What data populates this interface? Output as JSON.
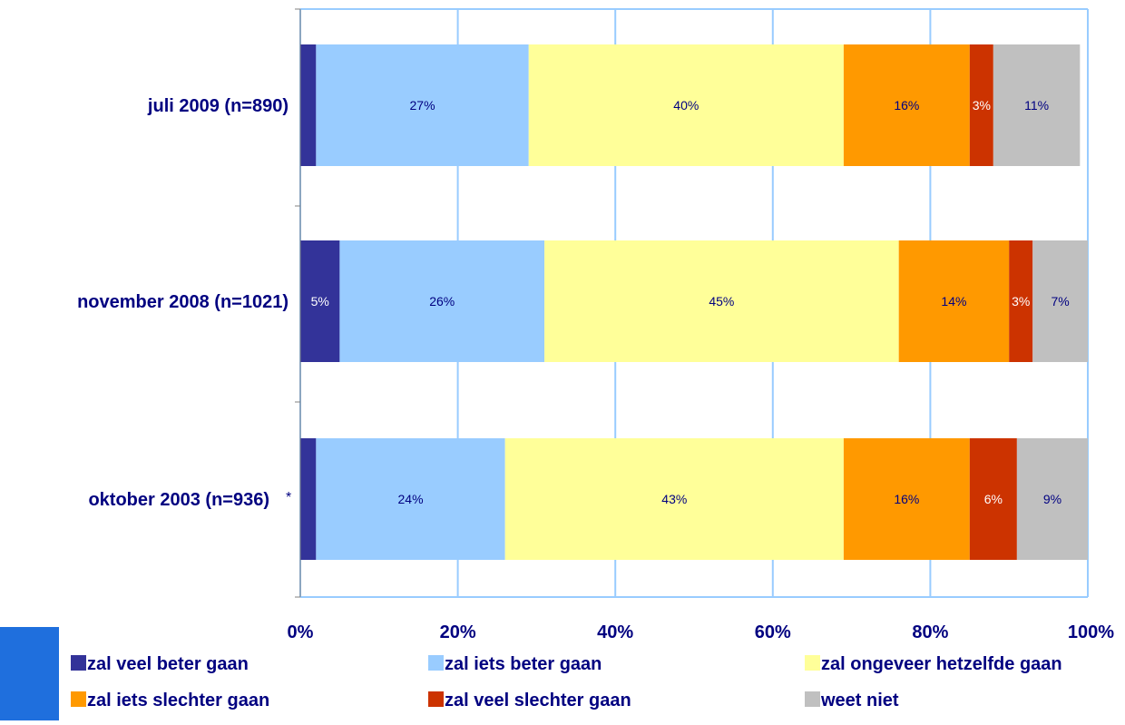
{
  "chart_data": {
    "type": "bar",
    "orientation": "horizontal",
    "stacked": true,
    "percent_stacked": true,
    "categories": [
      "juli 2009 (n=890)",
      "november 2008 (n=1021)",
      "oktober 2003 (n=936)"
    ],
    "category_notes": [
      "",
      "",
      "*"
    ],
    "series": [
      {
        "name": "zal veel beter gaan",
        "color": "#333399",
        "values": [
          2,
          5,
          2
        ],
        "labels": [
          "",
          "5%",
          ""
        ],
        "label_color": "#ffffff"
      },
      {
        "name": "zal iets beter gaan",
        "color": "#99ccff",
        "values": [
          27,
          26,
          24
        ],
        "labels": [
          "27%",
          "26%",
          "24%"
        ],
        "label_color": "#000080"
      },
      {
        "name": "zal ongeveer hetzelfde gaan",
        "color": "#ffff99",
        "values": [
          40,
          45,
          43
        ],
        "labels": [
          "40%",
          "45%",
          "43%"
        ],
        "label_color": "#000080"
      },
      {
        "name": "zal iets slechter gaan",
        "color": "#ff9900",
        "values": [
          16,
          14,
          16
        ],
        "labels": [
          "16%",
          "14%",
          "16%"
        ],
        "label_color": "#000080"
      },
      {
        "name": "zal veel slechter gaan",
        "color": "#cc3300",
        "values": [
          3,
          3,
          6
        ],
        "labels": [
          "3%",
          "3%",
          "6%"
        ],
        "label_color": "#ffffff"
      },
      {
        "name": "weet niet",
        "color": "#c0c0c0",
        "values": [
          11,
          7,
          9
        ],
        "labels": [
          "11%",
          "7%",
          "9%"
        ],
        "label_color": "#000080"
      }
    ],
    "x_ticks": [
      "0%",
      "20%",
      "40%",
      "60%",
      "80%",
      "100%"
    ],
    "xlim": [
      0,
      100
    ],
    "grid": true,
    "legend_position": "bottom",
    "title": "",
    "xlabel": "",
    "ylabel": ""
  },
  "colors": {
    "gridline": "#99ccff",
    "text": "#000080",
    "accent_block": "#1f6fdd"
  }
}
